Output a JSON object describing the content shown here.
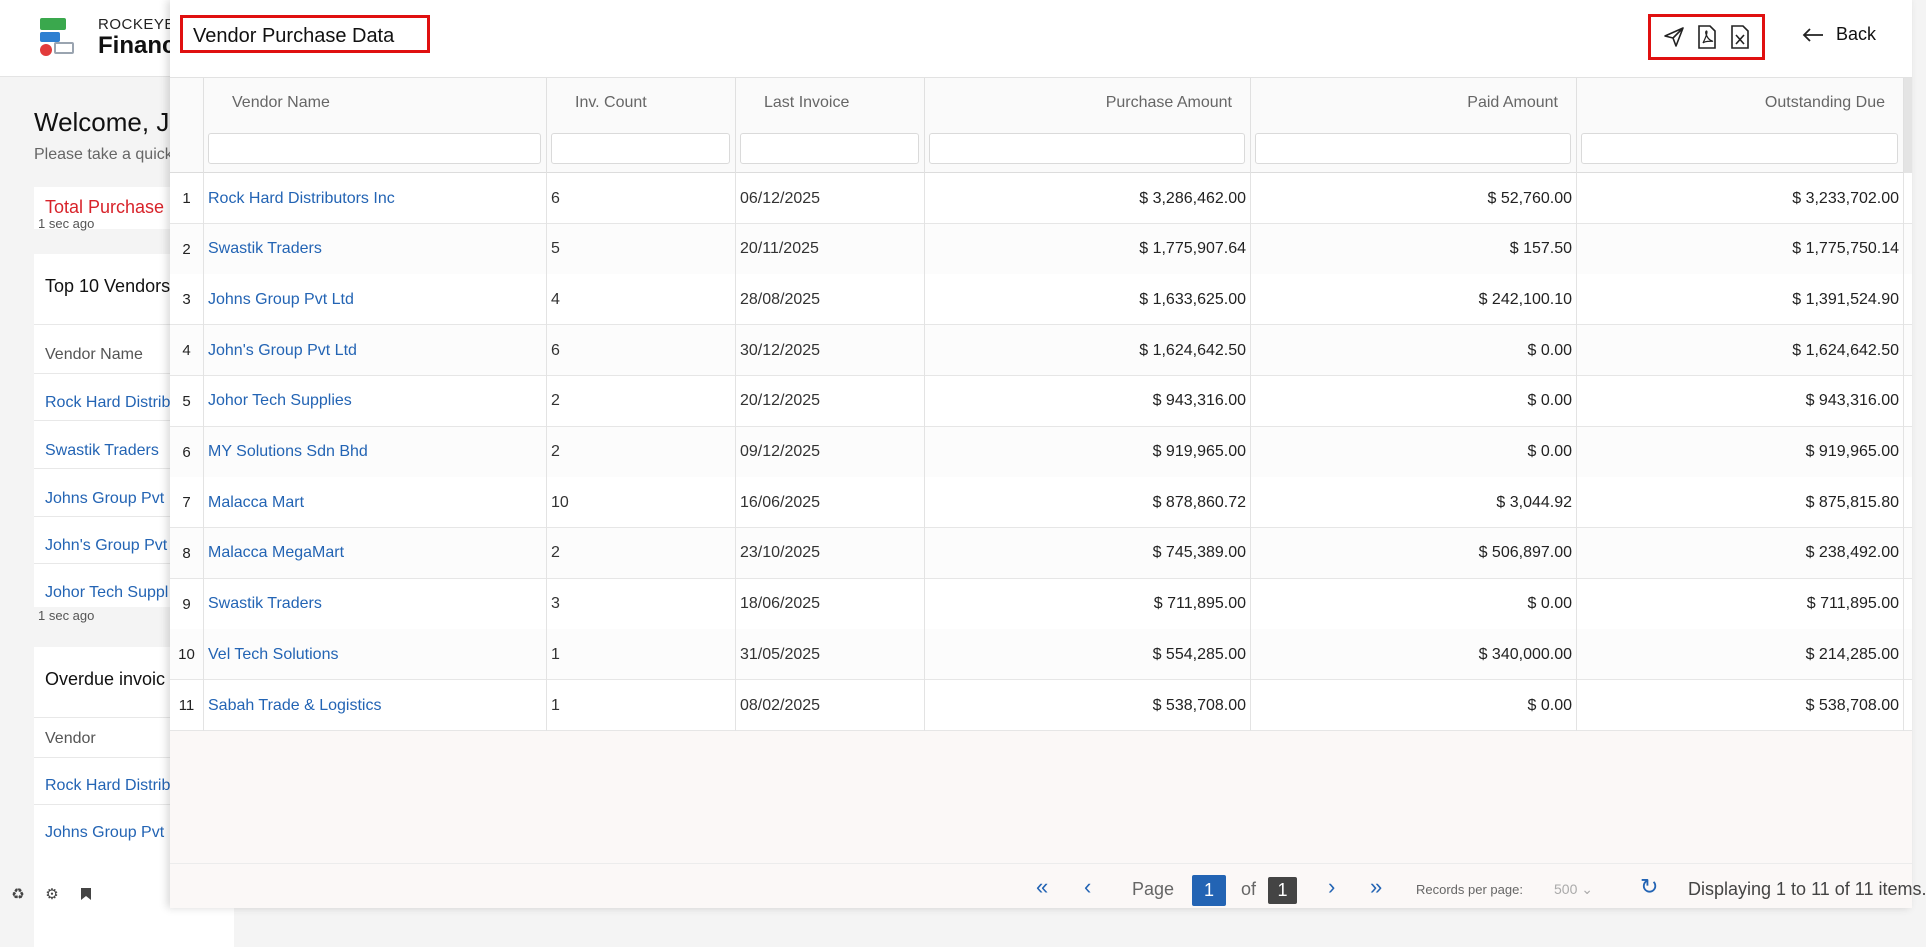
{
  "background": {
    "brand_top": "ROCKEYE",
    "brand_main": "Financ",
    "welcome": "Welcome, J",
    "welcome_sub": "Please take a quick",
    "total_purchase": "Total Purchase",
    "ago": "1 sec ago",
    "top10": {
      "title": "Top 10 Vendors",
      "col": "Vendor Name",
      "rows": [
        "Rock Hard Distrib",
        "Swastik Traders",
        "Johns Group Pvt",
        "John's Group Pvt",
        "Johor Tech Suppl"
      ]
    },
    "overdue": {
      "title": "Overdue invoic",
      "col": "Vendor",
      "rows": [
        "Rock Hard Distrib",
        "Johns Group Pvt"
      ]
    },
    "bottom_icons": [
      "recycle-icon",
      "settings-cog-icon",
      "bookmark-icon"
    ]
  },
  "panel": {
    "title": "Vendor Purchase Data",
    "actions": [
      "send-icon",
      "pdf-export-icon",
      "excel-export-icon"
    ],
    "back_label": "Back"
  },
  "table": {
    "columns": [
      "Vendor Name",
      "Inv. Count",
      "Last Invoice",
      "Purchase Amount",
      "Paid Amount",
      "Outstanding Due"
    ],
    "rows": [
      {
        "n": "1",
        "vendor": "Rock Hard Distributors Inc",
        "count": "6",
        "last": "06/12/2025",
        "purchase": "$ 3,286,462.00",
        "paid": "$ 52,760.00",
        "due": "$ 3,233,702.00"
      },
      {
        "n": "2",
        "vendor": "Swastik Traders",
        "count": "5",
        "last": "20/11/2025",
        "purchase": "$ 1,775,907.64",
        "paid": "$ 157.50",
        "due": "$ 1,775,750.14"
      },
      {
        "n": "3",
        "vendor": "Johns Group Pvt Ltd",
        "count": "4",
        "last": "28/08/2025",
        "purchase": "$ 1,633,625.00",
        "paid": "$ 242,100.10",
        "due": "$ 1,391,524.90"
      },
      {
        "n": "4",
        "vendor": "John's Group Pvt Ltd",
        "count": "6",
        "last": "30/12/2025",
        "purchase": "$ 1,624,642.50",
        "paid": "$ 0.00",
        "due": "$ 1,624,642.50"
      },
      {
        "n": "5",
        "vendor": "Johor Tech Supplies",
        "count": "2",
        "last": "20/12/2025",
        "purchase": "$ 943,316.00",
        "paid": "$ 0.00",
        "due": "$ 943,316.00"
      },
      {
        "n": "6",
        "vendor": "MY Solutions Sdn Bhd",
        "count": "2",
        "last": "09/12/2025",
        "purchase": "$ 919,965.00",
        "paid": "$ 0.00",
        "due": "$ 919,965.00"
      },
      {
        "n": "7",
        "vendor": "Malacca Mart",
        "count": "10",
        "last": "16/06/2025",
        "purchase": "$ 878,860.72",
        "paid": "$ 3,044.92",
        "due": "$ 875,815.80"
      },
      {
        "n": "8",
        "vendor": "Malacca MegaMart",
        "count": "2",
        "last": "23/10/2025",
        "purchase": "$ 745,389.00",
        "paid": "$ 506,897.00",
        "due": "$ 238,492.00"
      },
      {
        "n": "9",
        "vendor": "Swastik Traders",
        "count": "3",
        "last": "18/06/2025",
        "purchase": "$ 711,895.00",
        "paid": "$ 0.00",
        "due": "$ 711,895.00"
      },
      {
        "n": "10",
        "vendor": "Vel Tech Solutions",
        "count": "1",
        "last": "31/05/2025",
        "purchase": "$ 554,285.00",
        "paid": "$ 340,000.00",
        "due": "$ 214,285.00"
      },
      {
        "n": "11",
        "vendor": "Sabah Trade & Logistics",
        "count": "1",
        "last": "08/02/2025",
        "purchase": "$ 538,708.00",
        "paid": "$ 0.00",
        "due": "$ 538,708.00"
      }
    ]
  },
  "pager": {
    "page_label": "Page",
    "current": "1",
    "of_label": "of",
    "total": "1",
    "records_label": "Records per page:",
    "records_value": "500",
    "display": "Displaying 1 to 11 of 11 items."
  },
  "colors": {
    "accent": "#2364b4",
    "highlight": "#e01010",
    "alert": "#d8232a"
  }
}
